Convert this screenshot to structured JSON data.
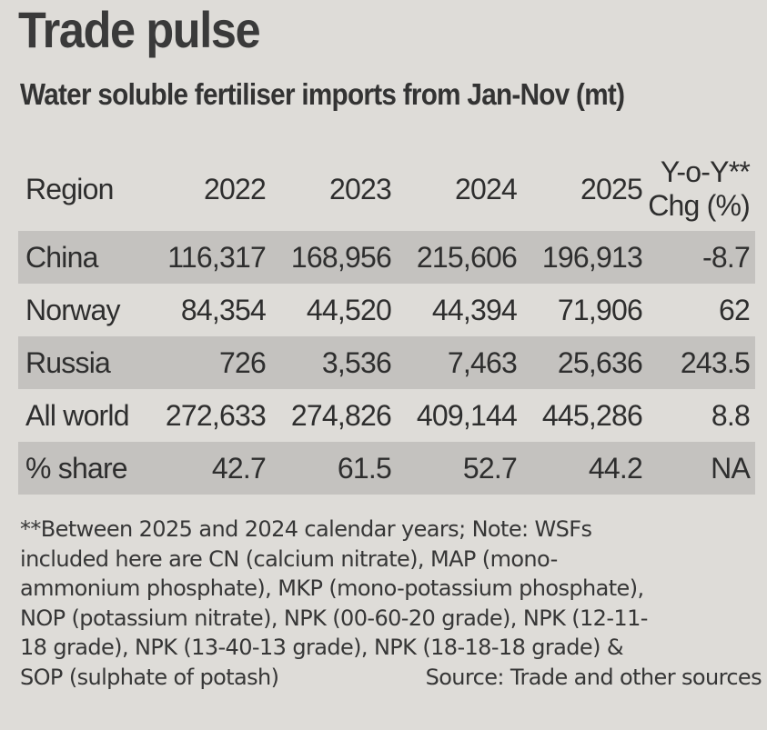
{
  "title": "Trade pulse",
  "subtitle": "Water soluble fertiliser imports from Jan-Nov (mt)",
  "table": {
    "headers": {
      "region": "Region",
      "y2022": "2022",
      "y2023": "2023",
      "y2024": "2024",
      "y2025": "2025",
      "yoy_line1": "Y-o-Y**",
      "yoy_line2": "Chg (%)"
    },
    "rows": [
      {
        "region": "China",
        "y2022": "116,317",
        "y2023": "168,956",
        "y2024": "215,606",
        "y2025": "196,913",
        "yoy": "-8.7"
      },
      {
        "region": "Norway",
        "y2022": "84,354",
        "y2023": "44,520",
        "y2024": "44,394",
        "y2025": "71,906",
        "yoy": "62"
      },
      {
        "region": "Russia",
        "y2022": "726",
        "y2023": "3,536",
        "y2024": "7,463",
        "y2025": "25,636",
        "yoy": "243.5"
      },
      {
        "region": "All world",
        "y2022": "272,633",
        "y2023": "274,826",
        "y2024": "409,144",
        "y2025": "445,286",
        "yoy": "8.8"
      },
      {
        "region": "% share",
        "y2022": "42.7",
        "y2023": "61.5",
        "y2024": "52.7",
        "y2025": "44.2",
        "yoy": "NA"
      }
    ]
  },
  "footnote": {
    "lines": [
      "**Between 2025 and 2024 calendar years; Note: WSFs",
      "included here are CN (calcium nitrate), MAP (mono-",
      "ammonium phosphate), MKP (mono-potassium phosphate),",
      "NOP (potassium nitrate), NPK (00-60-20 grade), NPK (12-11-",
      "18 grade), NPK (13-40-13 grade), NPK (18-18-18 grade) &",
      "SOP (sulphate of potash)"
    ],
    "source": "Source: Trade and other sources"
  }
}
